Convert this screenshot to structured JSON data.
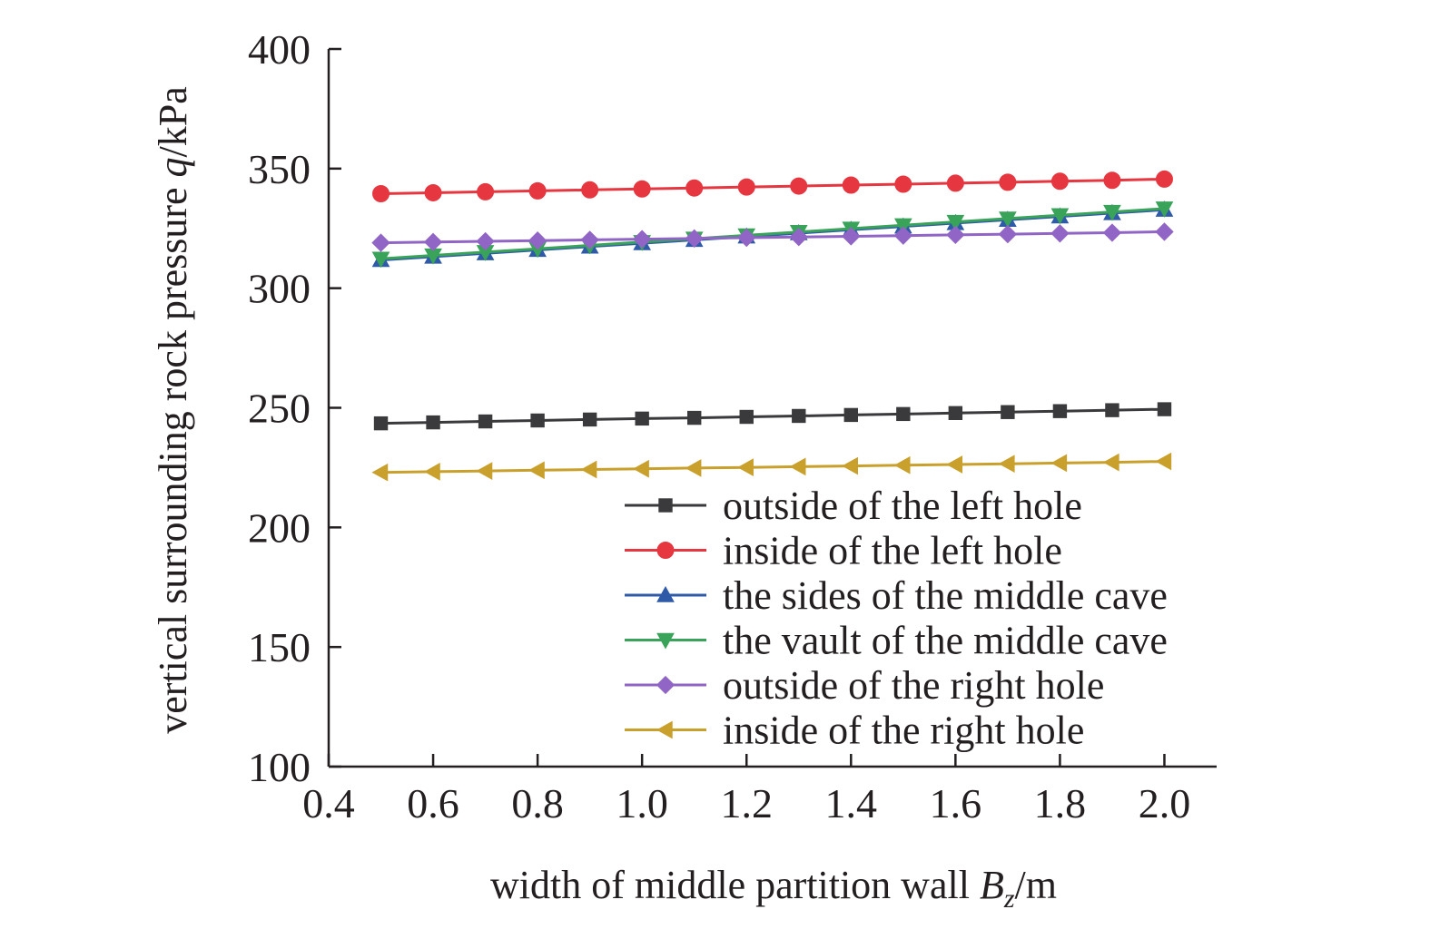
{
  "chart_data": {
    "type": "line",
    "xlabel": {
      "prefix": "width of middle partition wall ",
      "var": "B",
      "sub": "z",
      "suffix": "/m"
    },
    "ylabel": {
      "prefix": "vertical surrounding rock pressure ",
      "var": "q",
      "suffix": "/kPa"
    },
    "xlim": [
      0.4,
      2.1
    ],
    "ylim": [
      100,
      400
    ],
    "xticks": [
      "0.4",
      "0.6",
      "0.8",
      "1.0",
      "1.2",
      "1.4",
      "1.6",
      "1.8",
      "2.0"
    ],
    "yticks": [
      "100",
      "150",
      "200",
      "250",
      "300",
      "350",
      "400"
    ],
    "grid": false,
    "legend_position": "bottom-right",
    "x": [
      0.5,
      0.6,
      0.7,
      0.8,
      0.9,
      1.0,
      1.1,
      1.2,
      1.3,
      1.4,
      1.5,
      1.6,
      1.7,
      1.8,
      1.9,
      2.0
    ],
    "series": [
      {
        "name": "outside of the left hole",
        "color": "#3a3a3d",
        "marker": "square",
        "values": [
          243.5,
          243.9,
          244.3,
          244.7,
          245.1,
          245.5,
          245.8,
          246.2,
          246.6,
          247.0,
          247.4,
          247.8,
          248.2,
          248.6,
          249.0,
          249.4
        ]
      },
      {
        "name": "inside of the left hole",
        "color": "#e63740",
        "marker": "circle",
        "values": [
          339.5,
          339.9,
          340.3,
          340.7,
          341.1,
          341.5,
          341.9,
          342.3,
          342.7,
          343.1,
          343.5,
          343.9,
          344.3,
          344.7,
          345.1,
          345.6
        ]
      },
      {
        "name": "the sides of the middle cave",
        "color": "#2e5aa8",
        "marker": "triangle-up",
        "values": [
          311.8,
          313.2,
          314.6,
          316.0,
          317.4,
          318.8,
          320.2,
          321.6,
          323.0,
          324.4,
          325.8,
          327.2,
          328.6,
          330.0,
          331.4,
          332.8
        ]
      },
      {
        "name": "the vault of the middle cave",
        "color": "#3aa35a",
        "marker": "triangle-down",
        "values": [
          312.3,
          313.7,
          315.1,
          316.5,
          317.9,
          319.3,
          320.7,
          322.1,
          323.5,
          324.9,
          326.3,
          327.7,
          329.1,
          330.5,
          331.9,
          333.3
        ]
      },
      {
        "name": "outside of the right hole",
        "color": "#9165c6",
        "marker": "diamond",
        "values": [
          319.0,
          319.3,
          319.6,
          319.9,
          320.2,
          320.5,
          320.8,
          321.1,
          321.4,
          321.7,
          322.0,
          322.3,
          322.6,
          322.9,
          323.2,
          323.6
        ]
      },
      {
        "name": "inside of the right hole",
        "color": "#c9a02c",
        "marker": "triangle-left",
        "values": [
          223.0,
          223.3,
          223.6,
          223.9,
          224.2,
          224.5,
          224.8,
          225.1,
          225.4,
          225.7,
          226.0,
          226.3,
          226.6,
          226.9,
          227.2,
          227.6
        ]
      }
    ]
  }
}
